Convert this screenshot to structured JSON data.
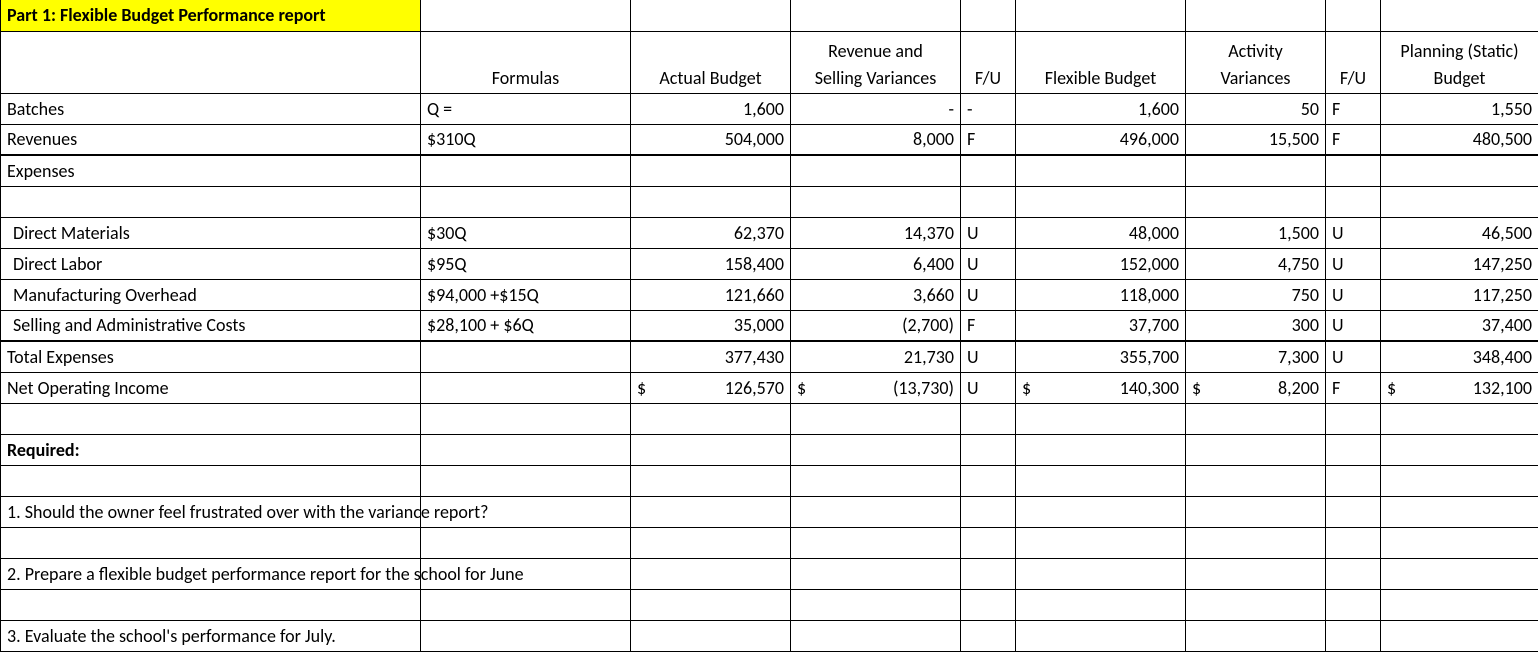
{
  "title": "Part 1: Flexible Budget Performance report",
  "headers": {
    "formulas": "Formulas",
    "actual": "Actual Budget",
    "rsv1": "Revenue and",
    "rsv2": "Selling Variances",
    "fu1": "F/U",
    "flex": "Flexible Budget",
    "act1": "Activity",
    "act2": "Variances",
    "fu2": "F/U",
    "plan1": "Planning (Static)",
    "plan2": "Budget"
  },
  "rows": [
    {
      "label": "Batches",
      "formula": "Q =",
      "actual": "1,600",
      "rsv": "-",
      "fu1": "-",
      "flex": "1,600",
      "actv": "50",
      "fu2": "F",
      "plan": "1,550",
      "indent": false
    },
    {
      "label": "Revenues",
      "formula": "$310Q",
      "actual": "504,000",
      "rsv": "8,000",
      "fu1": "F",
      "flex": "496,000",
      "actv": "15,500",
      "fu2": "F",
      "plan": "480,500",
      "indent": false,
      "thick": true
    },
    {
      "label": "Expenses",
      "formula": "",
      "actual": "",
      "rsv": "",
      "fu1": "",
      "flex": "",
      "actv": "",
      "fu2": "",
      "plan": "",
      "indent": false
    },
    {
      "label": "",
      "formula": "",
      "actual": "",
      "rsv": "",
      "fu1": "",
      "flex": "",
      "actv": "",
      "fu2": "",
      "plan": "",
      "indent": false
    },
    {
      "label": "Direct Materials",
      "formula": "$30Q",
      "actual": "62,370",
      "rsv": "14,370",
      "fu1": "U",
      "flex": "48,000",
      "actv": "1,500",
      "fu2": "U",
      "plan": "46,500",
      "indent": true
    },
    {
      "label": "Direct Labor",
      "formula": "$95Q",
      "actual": "158,400",
      "rsv": "6,400",
      "fu1": "U",
      "flex": "152,000",
      "actv": "4,750",
      "fu2": "U",
      "plan": "147,250",
      "indent": true
    },
    {
      "label": "Manufacturing Overhead",
      "formula": "$94,000 +$15Q",
      "actual": "121,660",
      "rsv": "3,660",
      "fu1": "U",
      "flex": "118,000",
      "actv": "750",
      "fu2": "U",
      "plan": "117,250",
      "indent": true
    },
    {
      "label": "Selling and Administrative Costs",
      "formula": "$28,100 + $6Q",
      "actual": "35,000",
      "rsv": "(2,700)",
      "fu1": "F",
      "flex": "37,700",
      "actv": "300",
      "fu2": "U",
      "plan": "37,400",
      "indent": true,
      "thick": true
    },
    {
      "label": "Total Expenses",
      "formula": "",
      "actual": "377,430",
      "rsv": "21,730",
      "fu1": "U",
      "flex": "355,700",
      "actv": "7,300",
      "fu2": "U",
      "plan": "348,400",
      "indent": false
    }
  ],
  "noi": {
    "label": "Net Operating Income",
    "actual": "126,570",
    "rsv": "(13,730)",
    "fu1": "U",
    "flex": "140,300",
    "actv": "8,200",
    "fu2": "F",
    "plan": "132,100",
    "dollar": "$"
  },
  "required_label": "Required:",
  "questions": [
    "1. Should the owner feel frustrated over with the variance report?",
    "2. Prepare a flexible budget performance report for the school for June",
    "3. Evaluate the school's performance for July."
  ]
}
